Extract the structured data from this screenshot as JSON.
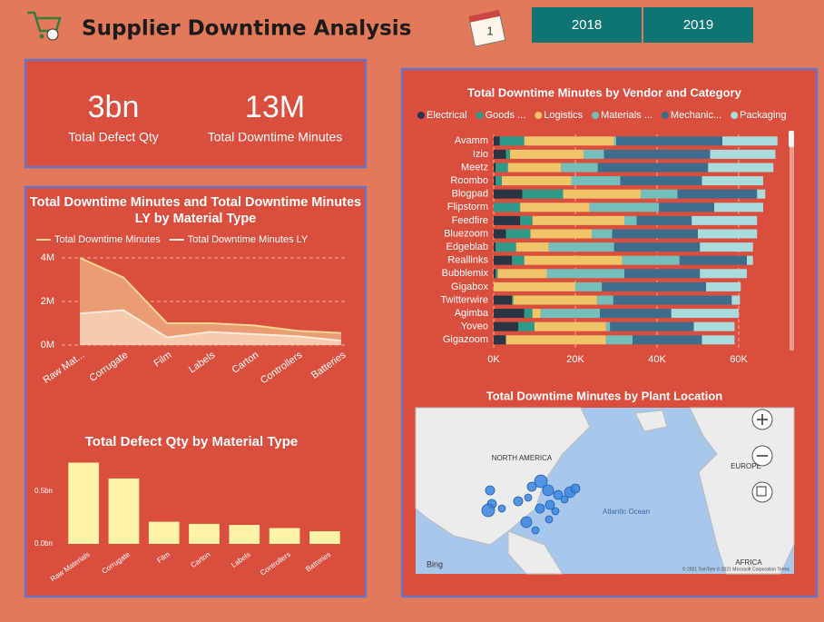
{
  "header": {
    "title": "Supplier Downtime Analysis",
    "years": [
      "2018",
      "2019"
    ]
  },
  "kpis": [
    {
      "value": "3bn",
      "label": "Total Defect Qty"
    },
    {
      "value": "13M",
      "label": "Total Downtime Minutes"
    }
  ],
  "chart_data": [
    {
      "type": "area",
      "title": "Total Downtime Minutes and Total Downtime Minutes LY by Material Type",
      "categories": [
        "Raw Mat...",
        "Corrugate",
        "Film",
        "Labels",
        "Carton",
        "Controllers",
        "Batteries"
      ],
      "series": [
        {
          "name": "Total Downtime Minutes",
          "color": "#f6d690",
          "values": [
            4000000,
            3100000,
            1000000,
            1000000,
            900000,
            650000,
            550000
          ]
        },
        {
          "name": "Total Downtime Minutes LY",
          "color": "#fde9d9",
          "values": [
            1450000,
            1600000,
            350000,
            600000,
            500000,
            400000,
            200000
          ]
        }
      ],
      "ylim": [
        0,
        4000000
      ],
      "yticks": [
        {
          "value": 0,
          "label": "0M"
        },
        {
          "value": 2000000,
          "label": "2M"
        },
        {
          "value": 4000000,
          "label": "4M"
        }
      ],
      "grid": true
    },
    {
      "type": "bar",
      "title": "Total Defect Qty by Material Type",
      "categories": [
        "Raw Materials",
        "Corrugate",
        "Film",
        "Carton",
        "Labels",
        "Controllers",
        "Batteries"
      ],
      "values": [
        0.77,
        0.62,
        0.21,
        0.19,
        0.18,
        0.15,
        0.12
      ],
      "color": "#fff3a8",
      "ylim": [
        0,
        0.8
      ],
      "yticks": [
        {
          "value": 0,
          "label": "0.0bn"
        },
        {
          "value": 0.5,
          "label": "0.5bn"
        }
      ]
    },
    {
      "type": "stacked-hbar",
      "title": "Total Downtime Minutes by Vendor and Category",
      "categories": [
        "Avamm",
        "Izio",
        "Meetz",
        "Roombo",
        "Blogpad",
        "Flipstorm",
        "Feedfire",
        "Bluezoom",
        "Edgeblab",
        "Reallinks",
        "Bubblemix",
        "Gigabox",
        "Twitterwire",
        "Agimba",
        "Yoveo",
        "Gigazoom"
      ],
      "series": [
        {
          "name": "Electrical",
          "color": "#2a3543",
          "values": [
            1500,
            3000,
            500,
            500,
            7000,
            0,
            6500,
            3000,
            500,
            4500,
            500,
            0,
            4500,
            7500,
            6000,
            3000
          ]
        },
        {
          "name": "Goods ...",
          "color": "#2f9a88",
          "values": [
            6000,
            1000,
            3000,
            1500,
            10000,
            6500,
            3000,
            6000,
            5000,
            3000,
            500,
            0,
            300,
            2000,
            4000,
            0
          ]
        },
        {
          "name": "Logistics",
          "color": "#f0c468",
          "values": [
            22000,
            18000,
            13000,
            17000,
            19000,
            17000,
            22500,
            15000,
            8000,
            24000,
            12000,
            20000,
            20500,
            2000,
            17500,
            24500
          ]
        },
        {
          "name": "Materials ...",
          "color": "#74bfb9",
          "values": [
            500,
            5000,
            9000,
            12000,
            9000,
            17000,
            3000,
            5000,
            16000,
            14000,
            19000,
            6500,
            4000,
            14500,
            1000,
            6500
          ]
        },
        {
          "name": "Mechanic...",
          "color": "#3e6d8c",
          "values": [
            26000,
            26000,
            27000,
            20000,
            19500,
            13500,
            13500,
            21000,
            21000,
            16500,
            18500,
            25500,
            29000,
            17500,
            20500,
            17000
          ]
        },
        {
          "name": "Packaging",
          "color": "#a9dcdc",
          "values": [
            13500,
            16000,
            16000,
            15000,
            2000,
            12000,
            16000,
            14500,
            13000,
            1500,
            11500,
            8500,
            2000,
            16500,
            10000,
            8000
          ]
        }
      ],
      "xlim": [
        0,
        70000
      ],
      "xticks": [
        {
          "value": 0,
          "label": "0K"
        },
        {
          "value": 20000,
          "label": "20K"
        },
        {
          "value": 40000,
          "label": "40K"
        },
        {
          "value": 60000,
          "label": "60K"
        }
      ],
      "grid": true
    }
  ],
  "map": {
    "title": "Total Downtime Minutes by Plant Location",
    "labels": [
      "NORTH AMERICA",
      "EUROPE",
      "Atlantic Ocean",
      "AFRICA"
    ],
    "brand": "Bing",
    "copyright": "© 2021 TomTom © 2021 Microsoft Corporation Terms"
  }
}
